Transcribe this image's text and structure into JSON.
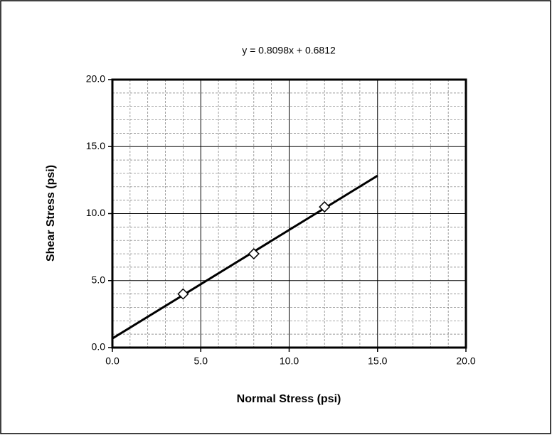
{
  "chart_data": {
    "type": "scatter",
    "title": "y = 0.8098x + 0.6812",
    "x_label": "Normal Stress (psi)",
    "y_label": "Shear Stress (psi)",
    "x": [
      4,
      8,
      12
    ],
    "values": [
      4.0,
      7.0,
      10.5
    ],
    "marker": "diamond",
    "color": "#000000",
    "trendline": {
      "slope": 0.8098,
      "intercept": 0.6812,
      "xrange": [
        0,
        15
      ]
    },
    "xlim": [
      0,
      20
    ],
    "ylim": [
      0,
      20
    ],
    "xticks": [
      {
        "value": 0,
        "label": "0.0"
      },
      {
        "value": 5,
        "label": "5.0"
      },
      {
        "value": 10,
        "label": "10.0"
      },
      {
        "value": 15,
        "label": "15.0"
      },
      {
        "value": 20,
        "label": "20.0"
      }
    ],
    "yticks": [
      {
        "value": 0,
        "label": "0.0"
      },
      {
        "value": 5,
        "label": "5.0"
      },
      {
        "value": 10,
        "label": "10.0"
      },
      {
        "value": 15,
        "label": "15.0"
      },
      {
        "value": 20,
        "label": "20.0"
      }
    ],
    "grid": true,
    "minor_grid": true
  }
}
